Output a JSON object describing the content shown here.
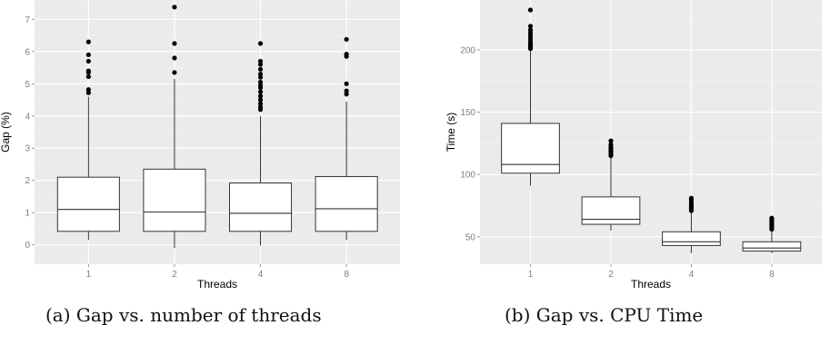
{
  "colors": {
    "panel_background": "#ebebeb",
    "grid_major": "#ffffff",
    "box_fill": "#ffffff",
    "box_stroke": "#333333",
    "outlier": "#000000",
    "tick_text": "#7f7f7f"
  },
  "captions": {
    "a": "(a) Gap vs. number of threads",
    "b": "(b) Gap vs. CPU Time"
  },
  "chart_data": [
    {
      "type": "boxplot",
      "xlabel": "Threads",
      "ylabel": "Gap (%)",
      "ylim": [
        -0.6,
        7.6
      ],
      "yticks": [
        0,
        1,
        2,
        3,
        4,
        5,
        6,
        7
      ],
      "grid": true,
      "categories": [
        "1",
        "2",
        "4",
        "8"
      ],
      "boxes": [
        {
          "whisker_low": 0.15,
          "q1": 0.42,
          "median": 1.1,
          "q3": 2.1,
          "whisker_high": 4.6,
          "outliers": [
            4.72,
            4.82,
            5.22,
            5.35,
            5.4,
            5.7,
            5.9,
            6.3
          ]
        },
        {
          "whisker_low": -0.1,
          "q1": 0.42,
          "median": 1.02,
          "q3": 2.35,
          "whisker_high": 5.15,
          "outliers": [
            5.35,
            5.8,
            6.25,
            7.38
          ]
        },
        {
          "whisker_low": -0.02,
          "q1": 0.42,
          "median": 0.98,
          "q3": 1.92,
          "whisker_high": 4.0,
          "outliers": [
            4.2,
            4.28,
            4.38,
            4.5,
            4.62,
            4.75,
            4.88,
            4.95,
            5.05,
            5.2,
            5.3,
            5.45,
            5.6,
            5.7,
            6.25
          ]
        },
        {
          "whisker_low": 0.15,
          "q1": 0.42,
          "median": 1.12,
          "q3": 2.12,
          "whisker_high": 4.45,
          "outliers": [
            4.68,
            4.78,
            5.0,
            5.85,
            5.92,
            6.38
          ]
        }
      ]
    },
    {
      "type": "boxplot",
      "xlabel": "Threads",
      "ylabel": "Time (s)",
      "ylim": [
        28,
        240
      ],
      "yticks": [
        50,
        100,
        150,
        200
      ],
      "grid": true,
      "categories": [
        "1",
        "2",
        "4",
        "8"
      ],
      "boxes": [
        {
          "whisker_low": 91,
          "q1": 101,
          "median": 108,
          "q3": 141,
          "whisker_high": 200,
          "outliers": [
            201,
            202,
            203,
            204,
            205,
            206,
            208,
            210,
            212,
            214,
            216,
            219,
            232
          ]
        },
        {
          "whisker_low": 55,
          "q1": 60,
          "median": 64,
          "q3": 82,
          "whisker_high": 114,
          "outliers": [
            115,
            116,
            117,
            118,
            119,
            120,
            121,
            122,
            124,
            127
          ]
        },
        {
          "whisker_low": 37,
          "q1": 43,
          "median": 46,
          "q3": 54,
          "whisker_high": 70,
          "outliers": [
            71,
            72,
            73,
            74,
            75,
            76,
            78,
            80,
            81
          ]
        },
        {
          "whisker_low": 37,
          "q1": 38.5,
          "median": 41,
          "q3": 46,
          "whisker_high": 55,
          "outliers": [
            56,
            57,
            58,
            59,
            60,
            61,
            62,
            63,
            64,
            65
          ]
        }
      ]
    }
  ]
}
